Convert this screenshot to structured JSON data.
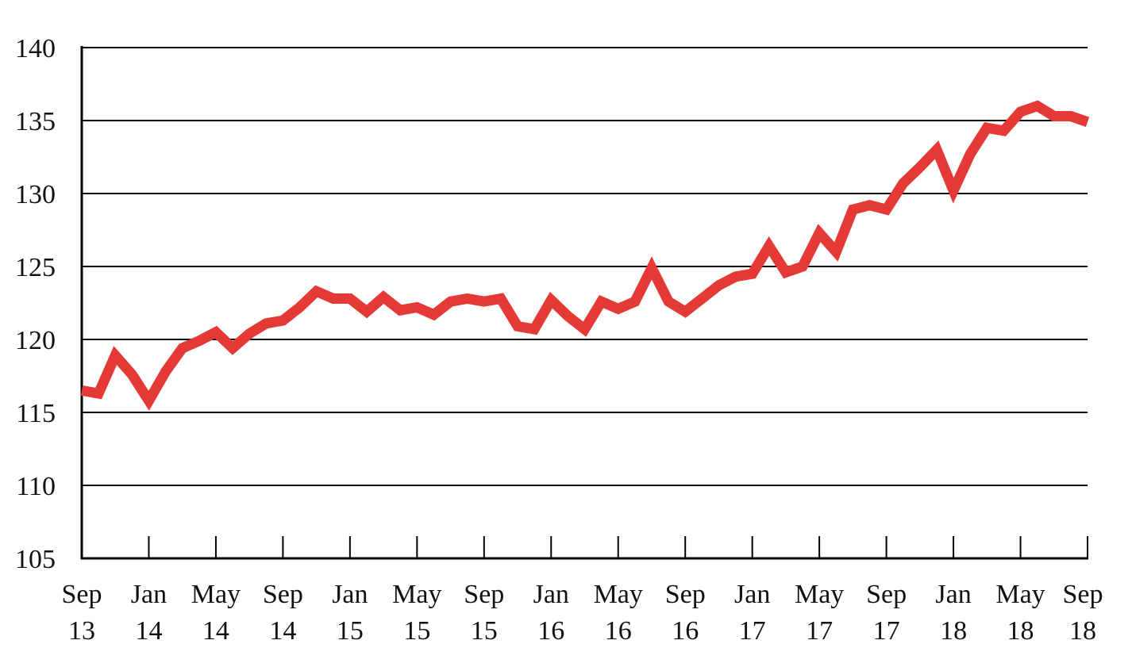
{
  "colors": {
    "series": "#e53935",
    "axis": "#000000",
    "grid": "#000000",
    "text": "#111111"
  },
  "chart_data": {
    "type": "line",
    "title": "",
    "xlabel": "",
    "ylabel": "",
    "ylim": [
      105,
      140
    ],
    "yticks": [
      105,
      110,
      115,
      120,
      125,
      130,
      135,
      140
    ],
    "yticks_labels": [
      "105",
      "110",
      "115",
      "120",
      "125",
      "130",
      "135",
      "140"
    ],
    "grid": true,
    "legend": "none",
    "x_tick_labels": [
      {
        "month": "Sep",
        "year": "13"
      },
      {
        "month": "Jan",
        "year": "14"
      },
      {
        "month": "May",
        "year": "14"
      },
      {
        "month": "Sep",
        "year": "14"
      },
      {
        "month": "Jan",
        "year": "15"
      },
      {
        "month": "May",
        "year": "15"
      },
      {
        "month": "Sep",
        "year": "15"
      },
      {
        "month": "Jan",
        "year": "16"
      },
      {
        "month": "May",
        "year": "16"
      },
      {
        "month": "Sep",
        "year": "16"
      },
      {
        "month": "Jan",
        "year": "17"
      },
      {
        "month": "May",
        "year": "17"
      },
      {
        "month": "Sep",
        "year": "17"
      },
      {
        "month": "Jan",
        "year": "18"
      },
      {
        "month": "May",
        "year": "18"
      },
      {
        "month": "Sep",
        "year": "18"
      }
    ],
    "x": [
      "2013-09",
      "2013-10",
      "2013-11",
      "2013-12",
      "2014-01",
      "2014-02",
      "2014-03",
      "2014-04",
      "2014-05",
      "2014-06",
      "2014-07",
      "2014-08",
      "2014-09",
      "2014-10",
      "2014-11",
      "2014-12",
      "2015-01",
      "2015-02",
      "2015-03",
      "2015-04",
      "2015-05",
      "2015-06",
      "2015-07",
      "2015-08",
      "2015-09",
      "2015-10",
      "2015-11",
      "2015-12",
      "2016-01",
      "2016-02",
      "2016-03",
      "2016-04",
      "2016-05",
      "2016-06",
      "2016-07",
      "2016-08",
      "2016-09",
      "2016-10",
      "2016-11",
      "2016-12",
      "2017-01",
      "2017-02",
      "2017-03",
      "2017-04",
      "2017-05",
      "2017-06",
      "2017-07",
      "2017-08",
      "2017-09",
      "2017-10",
      "2017-11",
      "2017-12",
      "2018-01",
      "2018-02",
      "2018-03",
      "2018-04",
      "2018-05",
      "2018-06",
      "2018-07",
      "2018-08",
      "2018-09"
    ],
    "series": [
      {
        "values": [
          116.5,
          116.3,
          118.9,
          117.6,
          115.8,
          117.8,
          119.4,
          119.9,
          120.5,
          119.4,
          120.4,
          121.1,
          121.3,
          122.2,
          123.3,
          122.8,
          122.8,
          121.9,
          122.9,
          122.0,
          122.2,
          121.7,
          122.6,
          122.8,
          122.6,
          122.8,
          120.9,
          120.7,
          122.7,
          121.6,
          120.7,
          122.6,
          122.1,
          122.6,
          124.9,
          122.6,
          121.9,
          122.8,
          123.7,
          124.3,
          124.5,
          126.4,
          124.6,
          125.0,
          127.3,
          126.0,
          128.9,
          129.2,
          128.9,
          130.7,
          131.8,
          133.0,
          130.2,
          132.7,
          134.5,
          134.3,
          135.6,
          136.0,
          135.3,
          135.3,
          134.9
        ]
      }
    ]
  }
}
